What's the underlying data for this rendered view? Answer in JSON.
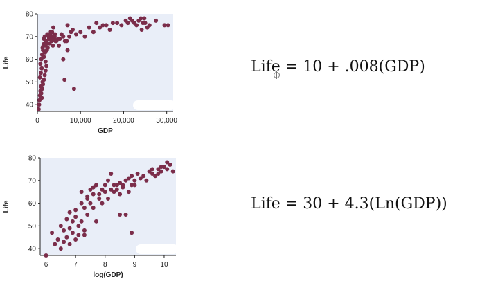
{
  "chart_data": [
    {
      "type": "scatter",
      "xlabel": "GDP",
      "ylabel": "Life",
      "xlim": [
        0,
        31500
      ],
      "ylim": [
        37,
        80
      ],
      "xticks": [
        0,
        10000,
        20000,
        30000
      ],
      "xtick_labels": [
        "0",
        "10,000",
        "20,000",
        "30,000"
      ],
      "yticks": [
        40,
        50,
        60,
        70,
        80
      ],
      "ytick_labels": [
        "40",
        "50",
        "60",
        "70",
        "80"
      ],
      "grid": false,
      "point_color": "#7b2d4a",
      "background": "#e9eef8",
      "series": [
        {
          "x": [
            300,
            400,
            500,
            600,
            700,
            800,
            900,
            1000,
            1100,
            1200,
            600,
            800,
            1000,
            1300,
            1500,
            1700,
            1900,
            2100,
            700,
            900,
            1100,
            1300,
            1500,
            1700,
            1900,
            1200,
            1400,
            1600,
            1800,
            2000,
            2200,
            1500,
            1700,
            1900,
            2100,
            2300,
            2500,
            2700,
            2900,
            3100,
            3300,
            3500,
            3700,
            3900,
            4100,
            2400,
            2800,
            3200,
            3600,
            4000,
            4400,
            4800,
            2600,
            3000,
            3400,
            3800,
            4200,
            5200,
            5600,
            6000,
            6400,
            5000,
            7000,
            7400,
            7800,
            6800,
            8200,
            9000,
            10000,
            11000,
            12000,
            13000,
            13700,
            14500,
            15200,
            16000,
            16800,
            17500,
            18500,
            19500,
            20500,
            21000,
            21500,
            22000,
            22500,
            23000,
            23500,
            24000,
            24500,
            25000,
            25500,
            26000,
            24200,
            24800,
            27500,
            29500,
            30300,
            6300,
            8500,
            6000,
            7000
          ],
          "y": [
            38,
            40,
            42,
            44,
            46,
            48,
            45,
            43,
            47,
            50,
            52,
            54,
            56,
            49,
            51,
            53,
            55,
            57,
            58,
            60,
            62,
            64,
            61,
            63,
            59,
            65,
            66,
            67,
            63,
            68,
            64,
            69,
            70,
            66,
            68,
            71,
            67,
            69,
            70,
            72,
            68,
            70,
            74,
            69,
            71,
            65,
            67,
            69,
            66,
            70,
            68,
            69,
            70,
            71,
            72,
            70,
            68,
            69,
            71,
            70,
            68,
            66,
            64,
            70,
            72,
            68,
            73,
            71,
            72,
            70,
            74,
            72,
            76,
            74,
            75,
            75,
            73,
            76,
            76,
            75,
            77,
            76,
            78,
            77,
            76,
            75,
            77,
            78,
            76,
            76,
            74,
            75,
            73,
            78,
            77,
            75,
            75,
            51,
            47,
            60,
            75
          ]
        }
      ]
    },
    {
      "type": "scatter",
      "xlabel": "log(GDP)",
      "ylabel": "Life",
      "xlim": [
        5.8,
        10.4
      ],
      "ylim": [
        37,
        80
      ],
      "xticks": [
        6,
        7,
        8,
        9,
        10
      ],
      "xtick_labels": [
        "6",
        "7",
        "8",
        "9",
        "10"
      ],
      "yticks": [
        40,
        50,
        60,
        70,
        80
      ],
      "ytick_labels": [
        "40",
        "50",
        "60",
        "70",
        "80"
      ],
      "grid": false,
      "point_color": "#7b2d4a",
      "background": "#e9eef8",
      "series": [
        {
          "x": [
            6.0,
            6.2,
            6.3,
            6.4,
            6.5,
            6.5,
            6.6,
            6.6,
            6.7,
            6.7,
            6.8,
            6.8,
            6.9,
            6.9,
            7.0,
            7.0,
            7.1,
            7.1,
            7.2,
            7.2,
            7.3,
            7.3,
            7.4,
            7.4,
            7.5,
            7.5,
            7.6,
            7.6,
            7.7,
            7.7,
            7.8,
            7.8,
            7.9,
            7.9,
            8.0,
            8.0,
            8.1,
            8.1,
            8.2,
            8.2,
            8.3,
            8.3,
            8.4,
            8.4,
            8.5,
            8.5,
            8.6,
            8.6,
            8.7,
            8.7,
            8.8,
            8.8,
            8.9,
            8.9,
            9.0,
            9.0,
            9.1,
            9.2,
            9.3,
            9.4,
            9.5,
            9.6,
            9.7,
            9.8,
            9.9,
            10.0,
            10.1,
            10.2,
            10.3,
            10.0,
            10.1,
            10.2,
            9.8,
            9.6,
            9.9,
            7.2,
            7.4,
            7.6,
            8.5,
            8.9,
            6.8,
            7.0,
            7.3
          ],
          "y": [
            37,
            47,
            42,
            44,
            40,
            50,
            48,
            43,
            53,
            45,
            49,
            56,
            52,
            47,
            54,
            57,
            50,
            46,
            52,
            60,
            58,
            48,
            55,
            63,
            60,
            66,
            64,
            67,
            52,
            68,
            62,
            64,
            60,
            66,
            65,
            68,
            70,
            62,
            73,
            66,
            65,
            68,
            68,
            66,
            64,
            69,
            68,
            67,
            55,
            70,
            71,
            65,
            68,
            72,
            68,
            70,
            73,
            71,
            72,
            70,
            74,
            73,
            72,
            75,
            74,
            76,
            75,
            77,
            74,
            76,
            78,
            77,
            73,
            75,
            76,
            65,
            62,
            58,
            55,
            47,
            42,
            44,
            46
          ]
        }
      ]
    }
  ],
  "equations": {
    "top": "Life = 10 + .008(GDP)",
    "bottom": "Life = 30 + 4.3(Ln(GDP))"
  }
}
